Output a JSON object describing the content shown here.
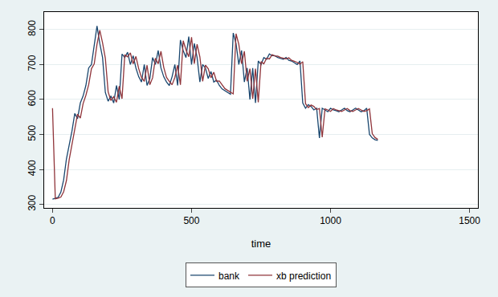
{
  "chart_data": {
    "type": "line",
    "x_label": "time",
    "x": [
      0,
      10,
      20,
      30,
      40,
      50,
      60,
      70,
      80,
      90,
      100,
      110,
      120,
      130,
      140,
      150,
      160,
      170,
      180,
      190,
      200,
      210,
      220,
      230,
      240,
      250,
      260,
      270,
      280,
      290,
      300,
      310,
      320,
      330,
      340,
      350,
      360,
      370,
      380,
      390,
      400,
      410,
      420,
      430,
      440,
      450,
      460,
      470,
      480,
      490,
      500,
      510,
      520,
      530,
      540,
      550,
      560,
      570,
      580,
      590,
      600,
      610,
      620,
      630,
      640,
      650,
      660,
      670,
      680,
      690,
      700,
      710,
      720,
      730,
      740,
      750,
      760,
      770,
      780,
      790,
      800,
      810,
      820,
      830,
      840,
      850,
      860,
      870,
      880,
      890,
      900,
      910,
      920,
      930,
      940,
      950,
      960,
      970,
      980,
      990,
      1000,
      1010,
      1020,
      1030,
      1040,
      1050,
      1060,
      1070,
      1080,
      1090,
      1100,
      1110,
      1120,
      1130,
      1140,
      1150,
      1160,
      1170
    ],
    "series": [
      {
        "name": "bank",
        "color": "#1a476f",
        "values": [
          315,
          318,
          320,
          335,
          370,
          430,
          470,
          510,
          560,
          545,
          590,
          610,
          640,
          690,
          700,
          760,
          810,
          760,
          720,
          620,
          595,
          610,
          590,
          640,
          600,
          730,
          720,
          735,
          700,
          725,
          690,
          665,
          650,
          700,
          640,
          660,
          720,
          700,
          740,
          690,
          665,
          650,
          640,
          665,
          700,
          640,
          770,
          740,
          720,
          780,
          700,
          760,
          720,
          650,
          700,
          690,
          660,
          680,
          650,
          655,
          640,
          630,
          625,
          620,
          615,
          790,
          760,
          700,
          740,
          650,
          690,
          600,
          690,
          590,
          710,
          700,
          720,
          715,
          730,
          725,
          725,
          720,
          718,
          715,
          720,
          712,
          710,
          705,
          700,
          710,
          590,
          575,
          585,
          580,
          570,
          575,
          490,
          575,
          570,
          565,
          575,
          570,
          568,
          565,
          570,
          575,
          568,
          565,
          570,
          575,
          570,
          565,
          568,
          575,
          500,
          490,
          485,
          483
        ]
      },
      {
        "name": "xb prediction",
        "color": "#90353b",
        "values": [
          575,
          316,
          318,
          321,
          336,
          368,
          428,
          470,
          508,
          558,
          547,
          588,
          612,
          642,
          688,
          702,
          758,
          798,
          762,
          718,
          622,
          597,
          608,
          592,
          638,
          602,
          728,
          722,
          733,
          702,
          723,
          688,
          663,
          652,
          698,
          642,
          662,
          718,
          702,
          738,
          692,
          663,
          652,
          642,
          663,
          698,
          642,
          768,
          742,
          722,
          778,
          702,
          758,
          722,
          652,
          698,
          688,
          662,
          678,
          652,
          653,
          642,
          631,
          626,
          621,
          616,
          788,
          758,
          702,
          738,
          652,
          688,
          602,
          688,
          592,
          708,
          702,
          718,
          716,
          728,
          724,
          724,
          720,
          718,
          716,
          719,
          712,
          709,
          706,
          701,
          708,
          588,
          577,
          584,
          580,
          571,
          574,
          492,
          573,
          570,
          566,
          574,
          570,
          568,
          566,
          570,
          574,
          568,
          566,
          570,
          574,
          570,
          566,
          568,
          573,
          502,
          491,
          486
        ]
      }
    ],
    "xlim": [
      -30,
      1530
    ],
    "xticks": [
      0,
      500,
      1000,
      1500
    ],
    "ylim": [
      290,
      850
    ],
    "yticks": [
      300,
      400,
      500,
      600,
      700,
      800
    ],
    "grid": true,
    "legend": "bottom"
  }
}
